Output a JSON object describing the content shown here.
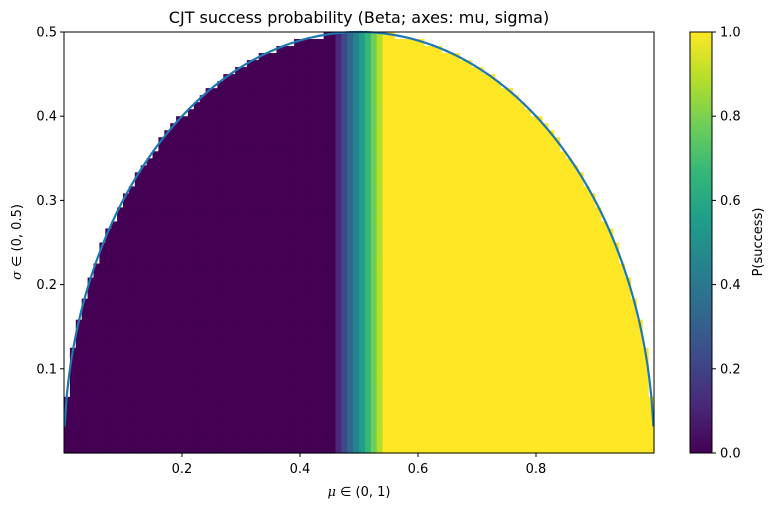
{
  "chart_data": {
    "type": "heatmap",
    "title": "CJT success probability (Beta; axes: mu, sigma)",
    "xlabel": {
      "symbol": "μ",
      "rest": " ∈ (0, 1)"
    },
    "ylabel": {
      "symbol": "σ",
      "rest": " ∈ (0, 0.5)"
    },
    "xlim": [
      0,
      1
    ],
    "ylim": [
      0,
      0.5
    ],
    "x_ticks": [
      {
        "value": 0.2,
        "label": "0.2"
      },
      {
        "value": 0.4,
        "label": "0.4"
      },
      {
        "value": 0.6,
        "label": "0.6"
      },
      {
        "value": 0.8,
        "label": "0.8"
      }
    ],
    "y_ticks": [
      {
        "value": 0.1,
        "label": "0.1"
      },
      {
        "value": 0.2,
        "label": "0.2"
      },
      {
        "value": 0.3,
        "label": "0.3"
      },
      {
        "value": 0.4,
        "label": "0.4"
      },
      {
        "value": 0.5,
        "label": "0.5"
      }
    ],
    "grid": false,
    "colormap": "viridis",
    "colorbar": {
      "label": "P(success)",
      "range": [
        0,
        1
      ],
      "ticks": [
        {
          "value": 0.0,
          "label": "0.0"
        },
        {
          "value": 0.2,
          "label": "0.2"
        },
        {
          "value": 0.4,
          "label": "0.4"
        },
        {
          "value": 0.6,
          "label": "0.6"
        },
        {
          "value": 0.8,
          "label": "0.8"
        },
        {
          "value": 1.0,
          "label": "1.0"
        }
      ]
    },
    "heatmap": {
      "x_bins": 100,
      "y_bins": 60,
      "region": "valid Beta parameters: sigma < sqrt(mu*(1-mu))",
      "transition_center_mu": 0.5,
      "transition_halfwidth_mu": 0.045
    },
    "boundary_curve": {
      "name": "sigma = sqrt(mu(1-mu))",
      "color": "#1f77b4"
    }
  }
}
